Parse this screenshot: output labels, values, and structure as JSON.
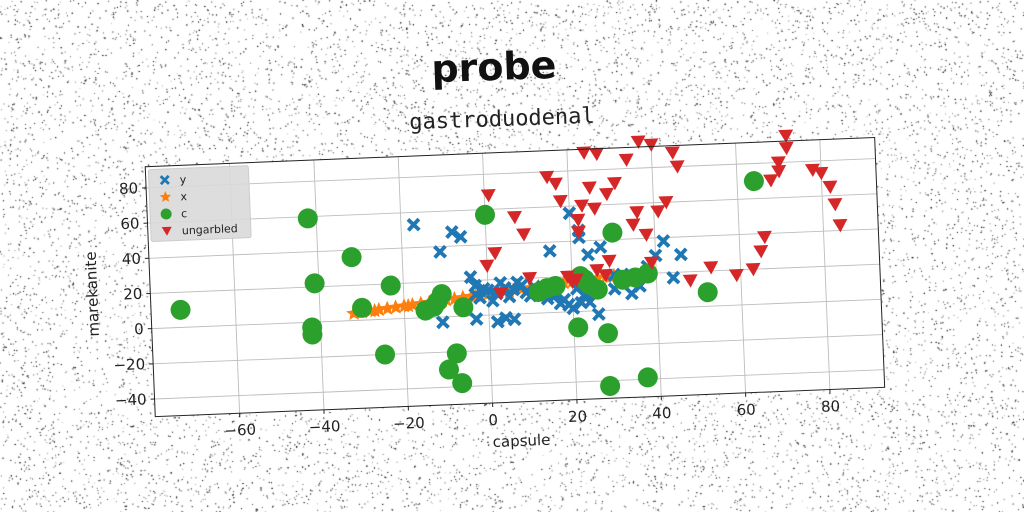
{
  "chart_data": {
    "type": "scatter",
    "suptitle": "probe",
    "title": "gastroduodenal",
    "xlabel": "capsule",
    "ylabel": "marekanite",
    "xlim": [
      -80,
      93
    ],
    "ylim": [
      -50,
      92
    ],
    "xticks": [
      -60,
      -40,
      -20,
      0,
      20,
      40,
      60,
      80
    ],
    "yticks": [
      -40,
      -20,
      0,
      20,
      40,
      60,
      80
    ],
    "grid": true,
    "legend_position": "top-left",
    "series": [
      {
        "name": "y",
        "marker": "x",
        "color": "#1f77b4",
        "points": [
          [
            -17,
            53
          ],
          [
            -11,
            37
          ],
          [
            -8,
            48
          ],
          [
            -6,
            45
          ],
          [
            -4,
            22
          ],
          [
            -3,
            17
          ],
          [
            -3,
            12
          ],
          [
            -2,
            10
          ],
          [
            -1,
            15
          ],
          [
            0,
            14
          ],
          [
            1,
            8
          ],
          [
            2,
            12
          ],
          [
            3,
            18
          ],
          [
            4,
            15
          ],
          [
            5,
            10
          ],
          [
            6,
            14
          ],
          [
            7,
            18
          ],
          [
            8,
            16
          ],
          [
            9,
            12
          ],
          [
            10,
            10
          ],
          [
            11,
            15
          ],
          [
            12,
            13
          ],
          [
            14,
            8
          ],
          [
            15,
            35
          ],
          [
            16,
            10
          ],
          [
            17,
            5
          ],
          [
            18,
            7
          ],
          [
            19,
            4
          ],
          [
            20,
            2
          ],
          [
            21,
            13
          ],
          [
            22,
            5
          ],
          [
            23,
            10
          ],
          [
            24,
            5
          ],
          [
            -11,
            -3
          ],
          [
            -3,
            -2
          ],
          [
            2,
            -4
          ],
          [
            4,
            -2
          ],
          [
            6,
            -3
          ],
          [
            20,
            56
          ],
          [
            22,
            46
          ],
          [
            24,
            32
          ],
          [
            26,
            -2
          ],
          [
            27,
            36
          ],
          [
            30,
            12
          ],
          [
            32,
            20
          ],
          [
            36,
            13
          ],
          [
            38,
            24
          ],
          [
            40,
            30
          ],
          [
            42,
            38
          ],
          [
            44,
            17
          ],
          [
            46,
            30
          ],
          [
            30,
            20
          ],
          [
            34,
            9
          ],
          [
            22,
            42
          ]
        ]
      },
      {
        "name": "x",
        "marker": "star",
        "color": "#ff7f0e",
        "points": [
          [
            -32,
            4
          ],
          [
            -30,
            4.5
          ],
          [
            -28,
            5
          ],
          [
            -26,
            5.5
          ],
          [
            -24,
            6
          ],
          [
            -22,
            6.5
          ],
          [
            -20,
            7
          ],
          [
            -18,
            7.5
          ],
          [
            -16,
            8
          ],
          [
            -14,
            8.5
          ],
          [
            -12,
            9
          ],
          [
            -10,
            9.5
          ],
          [
            -8,
            10
          ],
          [
            -6,
            10.5
          ],
          [
            -4,
            11
          ],
          [
            -2,
            11.5
          ],
          [
            0,
            12
          ],
          [
            2,
            12.5
          ],
          [
            4,
            13
          ],
          [
            6,
            13.5
          ],
          [
            8,
            14
          ],
          [
            10,
            14.5
          ],
          [
            12,
            15
          ],
          [
            14,
            15.5
          ],
          [
            16,
            16
          ],
          [
            18,
            16.5
          ],
          [
            20,
            17
          ],
          [
            22,
            17.5
          ],
          [
            24,
            18
          ],
          [
            26,
            18.5
          ],
          [
            28,
            19
          ],
          [
            30,
            19.5
          ],
          [
            -27,
            5
          ],
          [
            -19,
            7
          ],
          [
            -11,
            9
          ],
          [
            -3,
            11
          ],
          [
            5,
            13
          ],
          [
            13,
            15
          ],
          [
            21,
            17
          ],
          [
            29,
            19
          ]
        ]
      },
      {
        "name": "c",
        "marker": "circle",
        "color": "#2ca02c",
        "points": [
          [
            -73,
            10
          ],
          [
            -42,
            59
          ],
          [
            -41,
            22
          ],
          [
            -32,
            36
          ],
          [
            -42,
            -7
          ],
          [
            -42,
            -3
          ],
          [
            -30,
            7
          ],
          [
            -25,
            -20
          ],
          [
            -23,
            19
          ],
          [
            -15,
            4
          ],
          [
            -13,
            6
          ],
          [
            -12,
            9
          ],
          [
            -11,
            13
          ],
          [
            -10,
            -30
          ],
          [
            -8,
            -21
          ],
          [
            -7,
            -38
          ],
          [
            -6,
            5
          ],
          [
            0,
            57
          ],
          [
            12,
            12
          ],
          [
            14,
            14
          ],
          [
            16,
            15
          ],
          [
            22,
            20
          ],
          [
            23,
            18
          ],
          [
            24,
            15
          ],
          [
            26,
            12
          ],
          [
            28,
            -13
          ],
          [
            28,
            -43
          ],
          [
            21,
            -9
          ],
          [
            30,
            44
          ],
          [
            32,
            17
          ],
          [
            35,
            18
          ],
          [
            37,
            -39
          ],
          [
            38,
            20
          ],
          [
            52,
            8
          ],
          [
            64,
            70
          ]
        ]
      },
      {
        "name": "ungarbled",
        "marker": "triangle_down",
        "color": "#d62728",
        "points": [
          [
            1,
            68
          ],
          [
            0,
            28
          ],
          [
            2,
            35
          ],
          [
            3,
            12
          ],
          [
            7,
            55
          ],
          [
            9,
            45
          ],
          [
            10,
            20
          ],
          [
            15,
            77
          ],
          [
            17,
            73
          ],
          [
            18,
            63
          ],
          [
            19,
            20
          ],
          [
            20,
            17
          ],
          [
            21,
            18
          ],
          [
            22,
            52
          ],
          [
            22,
            45
          ],
          [
            23,
            60
          ],
          [
            24,
            90
          ],
          [
            25,
            70
          ],
          [
            26,
            58
          ],
          [
            26,
            23
          ],
          [
            27,
            89
          ],
          [
            28,
            20
          ],
          [
            29,
            66
          ],
          [
            29,
            28
          ],
          [
            31,
            72
          ],
          [
            34,
            85
          ],
          [
            35,
            48
          ],
          [
            36,
            55
          ],
          [
            37,
            95
          ],
          [
            38,
            42
          ],
          [
            39,
            26
          ],
          [
            40,
            93
          ],
          [
            41,
            55
          ],
          [
            43,
            60
          ],
          [
            45,
            88
          ],
          [
            46,
            80
          ],
          [
            48,
            15
          ],
          [
            53,
            22
          ],
          [
            59,
            17
          ],
          [
            63,
            20
          ],
          [
            65,
            30
          ],
          [
            66,
            38
          ],
          [
            68,
            70
          ],
          [
            70,
            75
          ],
          [
            70,
            80
          ],
          [
            72,
            88
          ],
          [
            72,
            95
          ],
          [
            78,
            75
          ],
          [
            80,
            73
          ],
          [
            82,
            65
          ],
          [
            83,
            55
          ],
          [
            84,
            43
          ]
        ]
      }
    ]
  }
}
